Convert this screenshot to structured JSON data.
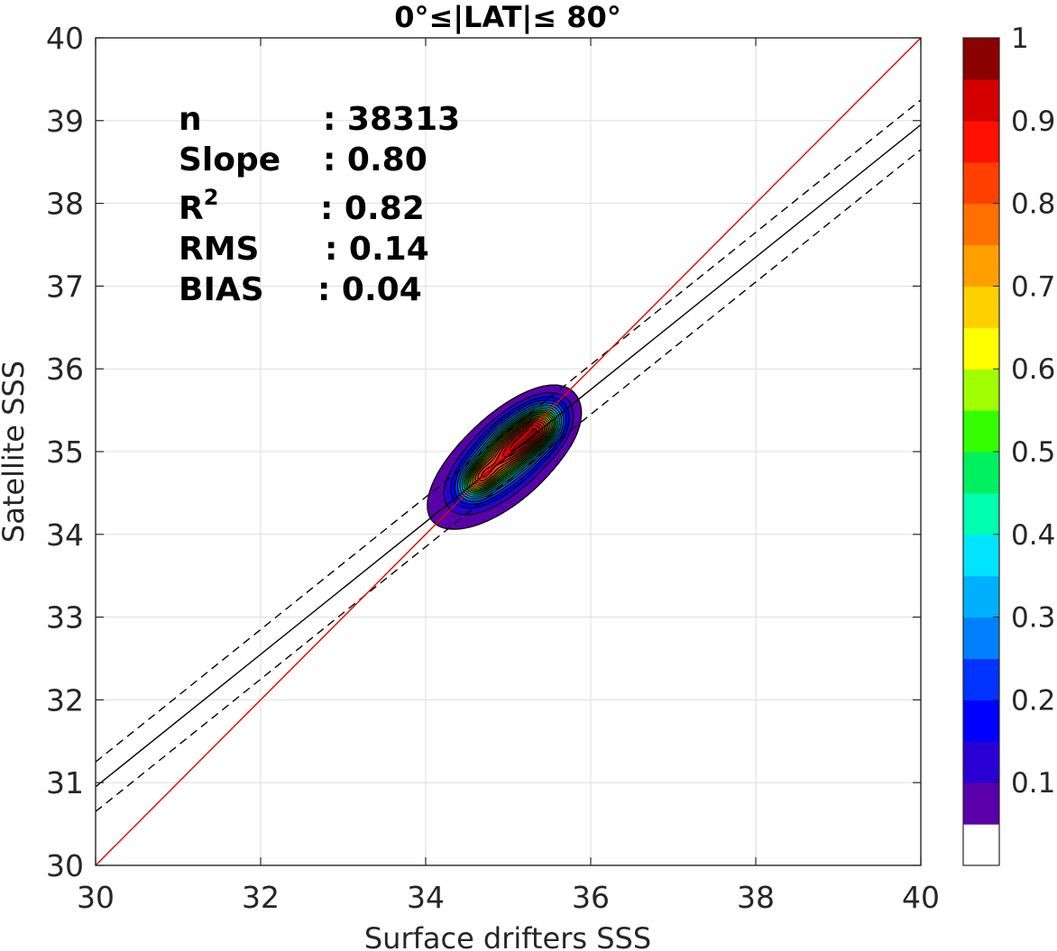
{
  "chart_data": {
    "type": "contour",
    "title": "0°≤|LAT|≤ 80°",
    "xlabel": "Surface drifters SSS",
    "ylabel": "Satellite SSS",
    "xlim": [
      30,
      40
    ],
    "ylim": [
      30,
      40
    ],
    "xticks": [
      "30",
      "32",
      "34",
      "36",
      "38",
      "40"
    ],
    "yticks": [
      "30",
      "31",
      "32",
      "33",
      "34",
      "35",
      "36",
      "37",
      "38",
      "39",
      "40"
    ],
    "grid": true,
    "stats": [
      {
        "label": "n",
        "sep": ": ",
        "value": "38313"
      },
      {
        "label": "Slope",
        "sep": ": ",
        "value": "0.80"
      },
      {
        "label": "R",
        "sup": "2",
        "sep": ": ",
        "value": "0.82"
      },
      {
        "label": "RMS",
        "sep": ": ",
        "value": "0.14"
      },
      {
        "label": "BIAS",
        "sep": ": ",
        "value": "0.04"
      }
    ],
    "lines": {
      "identity": {
        "color": "#e60000",
        "from": [
          30,
          30
        ],
        "to": [
          40,
          40
        ]
      },
      "regression": {
        "color": "#000000",
        "from": [
          30,
          30.95
        ],
        "to": [
          40,
          38.95
        ]
      },
      "upper_bound": {
        "color": "#000000",
        "dashed": true,
        "from": [
          30,
          31.25
        ],
        "to": [
          40,
          39.25
        ]
      },
      "lower_bound": {
        "color": "#000000",
        "dashed": true,
        "from": [
          30,
          30.65
        ],
        "to": [
          40,
          38.65
        ]
      }
    },
    "density": {
      "normalized": true,
      "peaks": [
        {
          "x": 35.05,
          "y": 35.05,
          "amplitude": 0.98,
          "sigma_major": 0.36,
          "sigma_minor": 0.17,
          "angle_deg": 45
        },
        {
          "x": 35.4,
          "y": 35.28,
          "amplitude": 0.55,
          "sigma_major": 0.2,
          "sigma_minor": 0.14,
          "angle_deg": 45
        },
        {
          "x": 34.65,
          "y": 34.67,
          "amplitude": 0.55,
          "sigma_major": 0.17,
          "sigma_minor": 0.12,
          "angle_deg": 45
        },
        {
          "x": 34.9,
          "y": 34.85,
          "amplitude": 0.25,
          "sigma_major": 0.65,
          "sigma_minor": 0.3,
          "angle_deg": 40
        }
      ],
      "contour_levels": [
        0.05,
        0.1,
        0.15,
        0.2,
        0.25,
        0.3,
        0.35,
        0.4,
        0.45,
        0.5,
        0.55,
        0.6,
        0.65,
        0.7,
        0.75,
        0.8,
        0.85,
        0.9,
        0.95
      ]
    },
    "colorbar": {
      "range": [
        0,
        1
      ],
      "ticks": [
        "0.1",
        "0.2",
        "0.3",
        "0.4",
        "0.5",
        "0.6",
        "0.7",
        "0.8",
        "0.9",
        "1"
      ],
      "colors": [
        "#ffffff",
        "#5a00aa",
        "#2a00d5",
        "#0000ff",
        "#0033ff",
        "#0080ff",
        "#00b0ff",
        "#00e5ff",
        "#00ffb0",
        "#00f060",
        "#33ff00",
        "#a0ff00",
        "#ffff00",
        "#ffd000",
        "#ffa000",
        "#ff7000",
        "#ff4000",
        "#ff1000",
        "#d40000",
        "#8b0000"
      ]
    }
  }
}
